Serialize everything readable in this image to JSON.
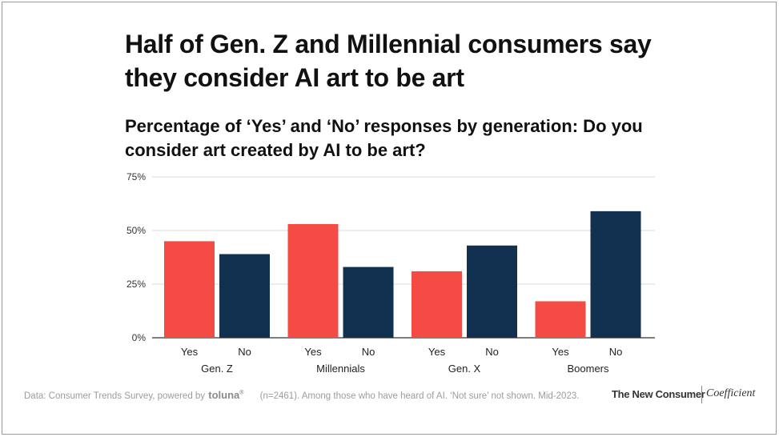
{
  "title": "Half of Gen. Z and Millennial consumers say they consider AI art to be art",
  "subtitle": "Percentage of ‘Yes’ and ‘No’ responses by generation: Do you consider art created by AI to be art?",
  "footer": {
    "source_prefix": "Data: Consumer Trends Survey, powered by",
    "source_brand": "toluna",
    "source_brand_mark": "®",
    "note": "(n=2461). Among those who have heard of AI. ‘Not sure’ not shown. Mid-2023.",
    "brand_1": "The New Consumer",
    "brand_2": "Coefficient"
  },
  "chart_data": {
    "type": "bar",
    "categories": [
      "Gen. Z",
      "Millennials",
      "Gen. X",
      "Boomers"
    ],
    "series": [
      {
        "name": "Yes",
        "color": "#f44c44",
        "values": [
          45,
          53,
          31,
          17
        ]
      },
      {
        "name": "No",
        "color": "#12304f",
        "values": [
          39,
          33,
          43,
          59
        ]
      }
    ],
    "ylim": [
      0,
      75
    ],
    "yticks": [
      0,
      25,
      50,
      75
    ],
    "ytick_labels": [
      "0%",
      "25%",
      "50%",
      "75%"
    ],
    "grid": true
  }
}
